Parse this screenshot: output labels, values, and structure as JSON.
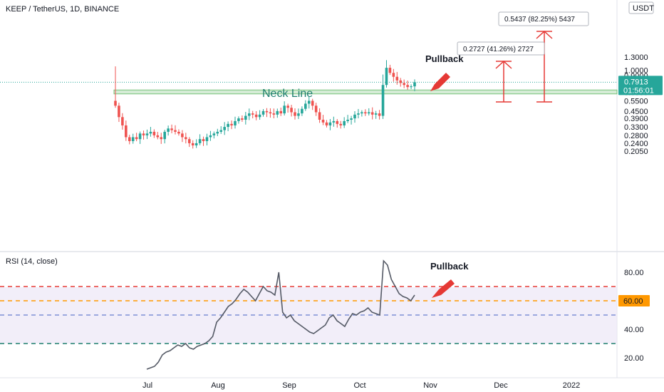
{
  "header": {
    "title": "KEEP / TetherUS, 1D, BINANCE",
    "currency": "USDT"
  },
  "chart_data": [
    {
      "type": "candlestick",
      "title": "KEEP / TetherUS, 1D, BINANCE",
      "y_scale": "log",
      "y_ticks": [
        "0.2050",
        "0.2400",
        "0.2800",
        "0.3300",
        "0.3900",
        "0.4500",
        "0.5500",
        "0.6500",
        "0.7913",
        "0.9000",
        "1.0000",
        "1.3000"
      ],
      "x_ticks": [
        "Jul",
        "Aug",
        "Sep",
        "Oct",
        "Nov",
        "Dec",
        "2022"
      ],
      "last_price": "0.7913",
      "countdown": "01:56:01",
      "neck_line": {
        "label": "Neck Line",
        "low": 0.63,
        "high": 0.68
      },
      "annotations": {
        "pullback": "Pullback",
        "target_small": "0.2727 (41.26%) 2727",
        "target_large": "0.5437 (82.25%) 5437"
      },
      "close_series": [
        0.5,
        0.4,
        0.34,
        0.27,
        0.25,
        0.27,
        0.26,
        0.29,
        0.28,
        0.29,
        0.3,
        0.28,
        0.27,
        0.26,
        0.3,
        0.32,
        0.31,
        0.3,
        0.29,
        0.27,
        0.26,
        0.24,
        0.23,
        0.24,
        0.26,
        0.25,
        0.27,
        0.28,
        0.29,
        0.3,
        0.31,
        0.33,
        0.35,
        0.34,
        0.37,
        0.39,
        0.38,
        0.41,
        0.43,
        0.42,
        0.4,
        0.42,
        0.45,
        0.44,
        0.43,
        0.42,
        0.45,
        0.43,
        0.5,
        0.48,
        0.44,
        0.41,
        0.43,
        0.47,
        0.52,
        0.55,
        0.5,
        0.44,
        0.38,
        0.36,
        0.34,
        0.36,
        0.37,
        0.35,
        0.34,
        0.37,
        0.38,
        0.39,
        0.42,
        0.43,
        0.44,
        0.43,
        0.44,
        0.42,
        0.43,
        0.41,
        0.75,
        1.05,
        0.95,
        0.88,
        0.82,
        0.78,
        0.75,
        0.72,
        0.73,
        0.79
      ],
      "rsi": {
        "label": "RSI (14, close)",
        "y_ticks": [
          "80.00",
          "60.00",
          "40.00",
          "20.00"
        ],
        "levels": [
          30,
          50,
          60,
          70
        ],
        "highlight": "60.00",
        "values": [
          12,
          13,
          14,
          17,
          22,
          24,
          25,
          27,
          29,
          28,
          30,
          27,
          26,
          28,
          29,
          30,
          32,
          35,
          45,
          48,
          52,
          56,
          58,
          61,
          65,
          68,
          66,
          63,
          60,
          65,
          70,
          67,
          66,
          64,
          80,
          52,
          48,
          50,
          46,
          44,
          42,
          40,
          38,
          37,
          39,
          41,
          43,
          48,
          50,
          46,
          44,
          42,
          47,
          51,
          50,
          52,
          53,
          55,
          52,
          51,
          50,
          88,
          85,
          75,
          70,
          65,
          63,
          62,
          60,
          64
        ]
      },
      "pullback_rsi": "Pullback"
    }
  ]
}
